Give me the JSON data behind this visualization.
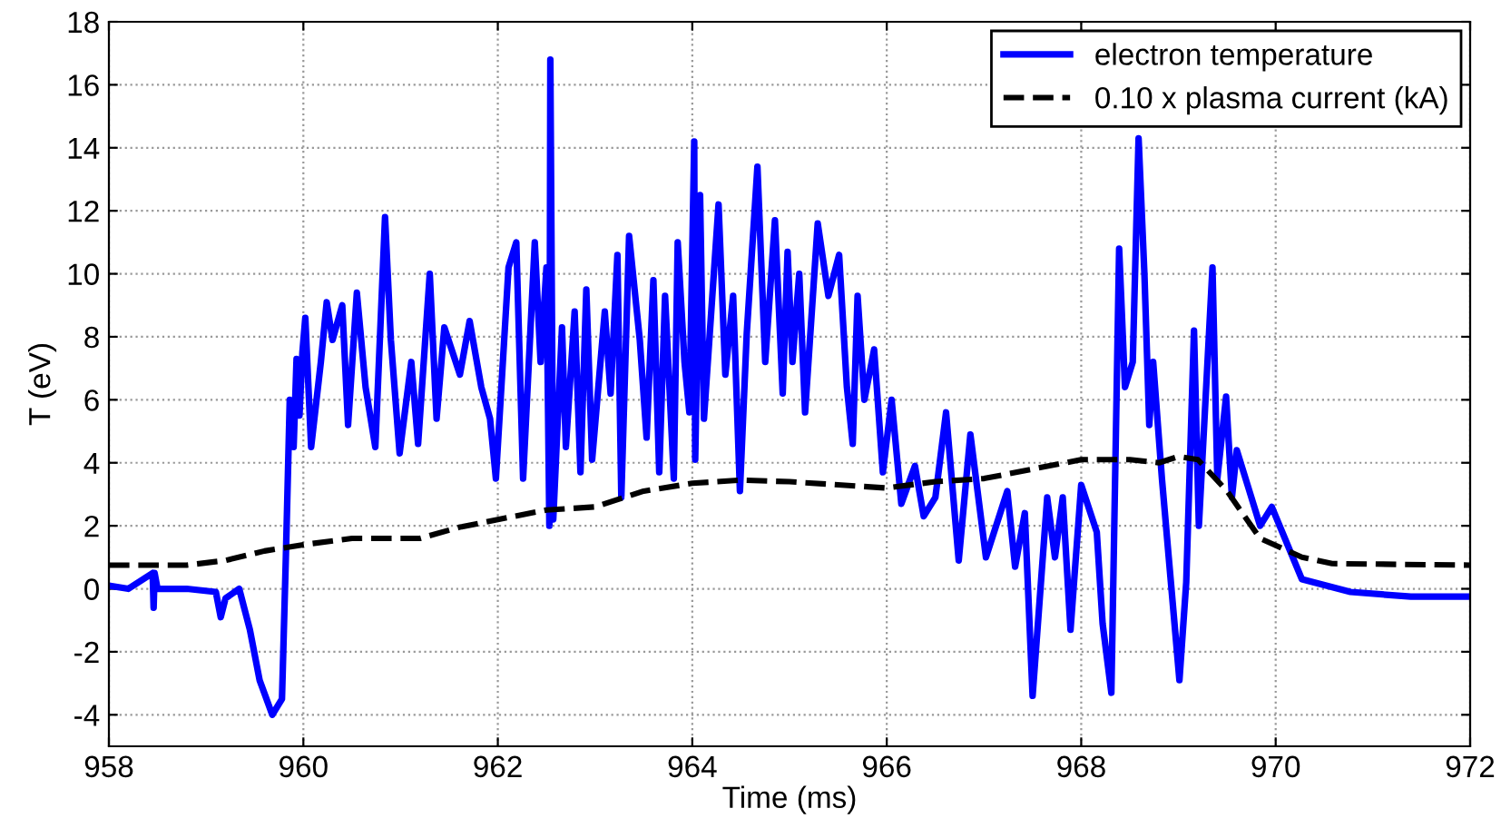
{
  "chart_data": {
    "type": "line",
    "xlabel": "Time (ms)",
    "ylabel": "T (eV)",
    "xlim": [
      958,
      972
    ],
    "ylim": [
      -5,
      18
    ],
    "xticks": [
      958,
      960,
      962,
      964,
      966,
      968,
      970,
      972
    ],
    "yticks": [
      -4,
      -2,
      0,
      2,
      4,
      6,
      8,
      10,
      12,
      14,
      16,
      18
    ],
    "grid": true,
    "legend": "top right",
    "series": [
      {
        "name": "electron temperature",
        "color": "#0000ff",
        "line_style": "solid",
        "x": [
          958.0,
          958.2,
          958.45,
          958.46,
          958.47,
          958.5,
          958.8,
          959.1,
          959.15,
          959.2,
          959.34,
          959.45,
          959.55,
          959.68,
          959.78,
          959.82,
          959.86,
          959.9,
          959.93,
          959.96,
          959.99,
          960.02,
          960.08,
          960.18,
          960.24,
          960.3,
          960.4,
          960.46,
          960.55,
          960.64,
          960.74,
          960.84,
          960.9,
          960.99,
          961.11,
          961.18,
          961.3,
          961.37,
          961.45,
          961.61,
          961.71,
          961.83,
          961.92,
          961.98,
          962.11,
          962.19,
          962.26,
          962.38,
          962.44,
          962.5,
          962.53,
          962.54,
          962.57,
          962.66,
          962.7,
          962.79,
          962.85,
          962.91,
          962.97,
          963.1,
          963.16,
          963.23,
          963.27,
          963.35,
          963.46,
          963.53,
          963.6,
          963.66,
          963.72,
          963.81,
          963.85,
          963.92,
          963.97,
          964.02,
          964.03,
          964.08,
          964.12,
          964.27,
          964.34,
          964.42,
          964.49,
          964.56,
          964.67,
          964.75,
          964.85,
          964.93,
          964.98,
          965.03,
          965.1,
          965.16,
          965.29,
          965.4,
          965.51,
          965.59,
          965.65,
          965.7,
          965.77,
          965.87,
          965.96,
          966.05,
          966.15,
          966.29,
          966.38,
          966.5,
          966.61,
          966.74,
          966.86,
          967.02,
          967.24,
          967.32,
          967.42,
          967.5,
          967.65,
          967.73,
          967.81,
          967.89,
          968.0,
          968.16,
          968.22,
          968.31,
          968.39,
          968.45,
          968.53,
          968.59,
          968.65,
          968.7,
          968.74,
          968.83,
          968.9,
          969.01,
          969.08,
          969.16,
          969.21,
          969.35,
          969.4,
          969.49,
          969.55,
          969.6,
          969.71,
          969.84,
          969.96,
          970.27,
          970.77,
          971.39,
          972.0
        ],
        "values": [
          0.1,
          0,
          0.5,
          -0.6,
          0.5,
          0,
          0,
          -0.1,
          -0.9,
          -0.3,
          0,
          -1.3,
          -2.9,
          -4.0,
          -3.5,
          1.0,
          6.0,
          4.5,
          7.3,
          5.5,
          7.5,
          8.6,
          4.5,
          7.2,
          9.1,
          7.9,
          9.0,
          5.2,
          9.4,
          6.4,
          4.5,
          11.8,
          7.9,
          4.3,
          7.2,
          4.6,
          10.0,
          5.4,
          8.3,
          6.8,
          8.5,
          6.4,
          5.4,
          3.5,
          10.2,
          11.0,
          3.5,
          11.0,
          7.2,
          10.2,
          2.0,
          16.8,
          2.2,
          8.3,
          4.5,
          8.8,
          3.7,
          9.5,
          4.1,
          8.8,
          6.2,
          10.6,
          2.9,
          11.2,
          7.9,
          4.8,
          9.8,
          3.7,
          9.3,
          3.5,
          11.0,
          7.2,
          5.6,
          14.2,
          4.1,
          12.5,
          5.4,
          12.2,
          6.8,
          9.3,
          3.1,
          8.1,
          13.4,
          7.2,
          11.7,
          6.2,
          10.7,
          7.2,
          10.0,
          5.6,
          11.6,
          9.3,
          10.6,
          6.4,
          4.6,
          9.3,
          6.0,
          7.6,
          3.7,
          6.0,
          2.7,
          3.9,
          2.3,
          2.9,
          5.6,
          0.9,
          4.9,
          1.0,
          3.1,
          0.7,
          2.4,
          -3.4,
          2.9,
          1.0,
          2.9,
          -1.3,
          3.3,
          1.8,
          -1.1,
          -3.3,
          10.8,
          6.4,
          7.2,
          14.3,
          10.0,
          5.2,
          7.2,
          3.5,
          1.0,
          -2.9,
          0.2,
          8.2,
          2.0,
          10.2,
          3.5,
          6.1,
          2.9,
          4.4,
          3.3,
          2.0,
          2.6,
          0.3,
          -0.1,
          -0.25,
          -0.25
        ]
      },
      {
        "name": "0.10 x plasma current (kA)",
        "color": "#000000",
        "line_style": "dashed",
        "x": [
          958.0,
          958.8,
          959.2,
          959.6,
          960.0,
          960.5,
          961.2,
          961.6,
          962.0,
          962.5,
          963.0,
          963.5,
          964.0,
          964.5,
          965.0,
          965.5,
          966.0,
          966.5,
          967.0,
          967.5,
          968.0,
          968.5,
          968.8,
          969.0,
          969.2,
          969.5,
          969.84,
          970.27,
          970.58,
          972.0
        ],
        "values": [
          0.75,
          0.75,
          0.9,
          1.2,
          1.4,
          1.6,
          1.6,
          1.95,
          2.2,
          2.5,
          2.6,
          3.1,
          3.35,
          3.45,
          3.4,
          3.3,
          3.2,
          3.4,
          3.5,
          3.8,
          4.1,
          4.1,
          4.0,
          4.2,
          4.1,
          3.1,
          1.6,
          1.0,
          0.8,
          0.75
        ]
      }
    ]
  }
}
